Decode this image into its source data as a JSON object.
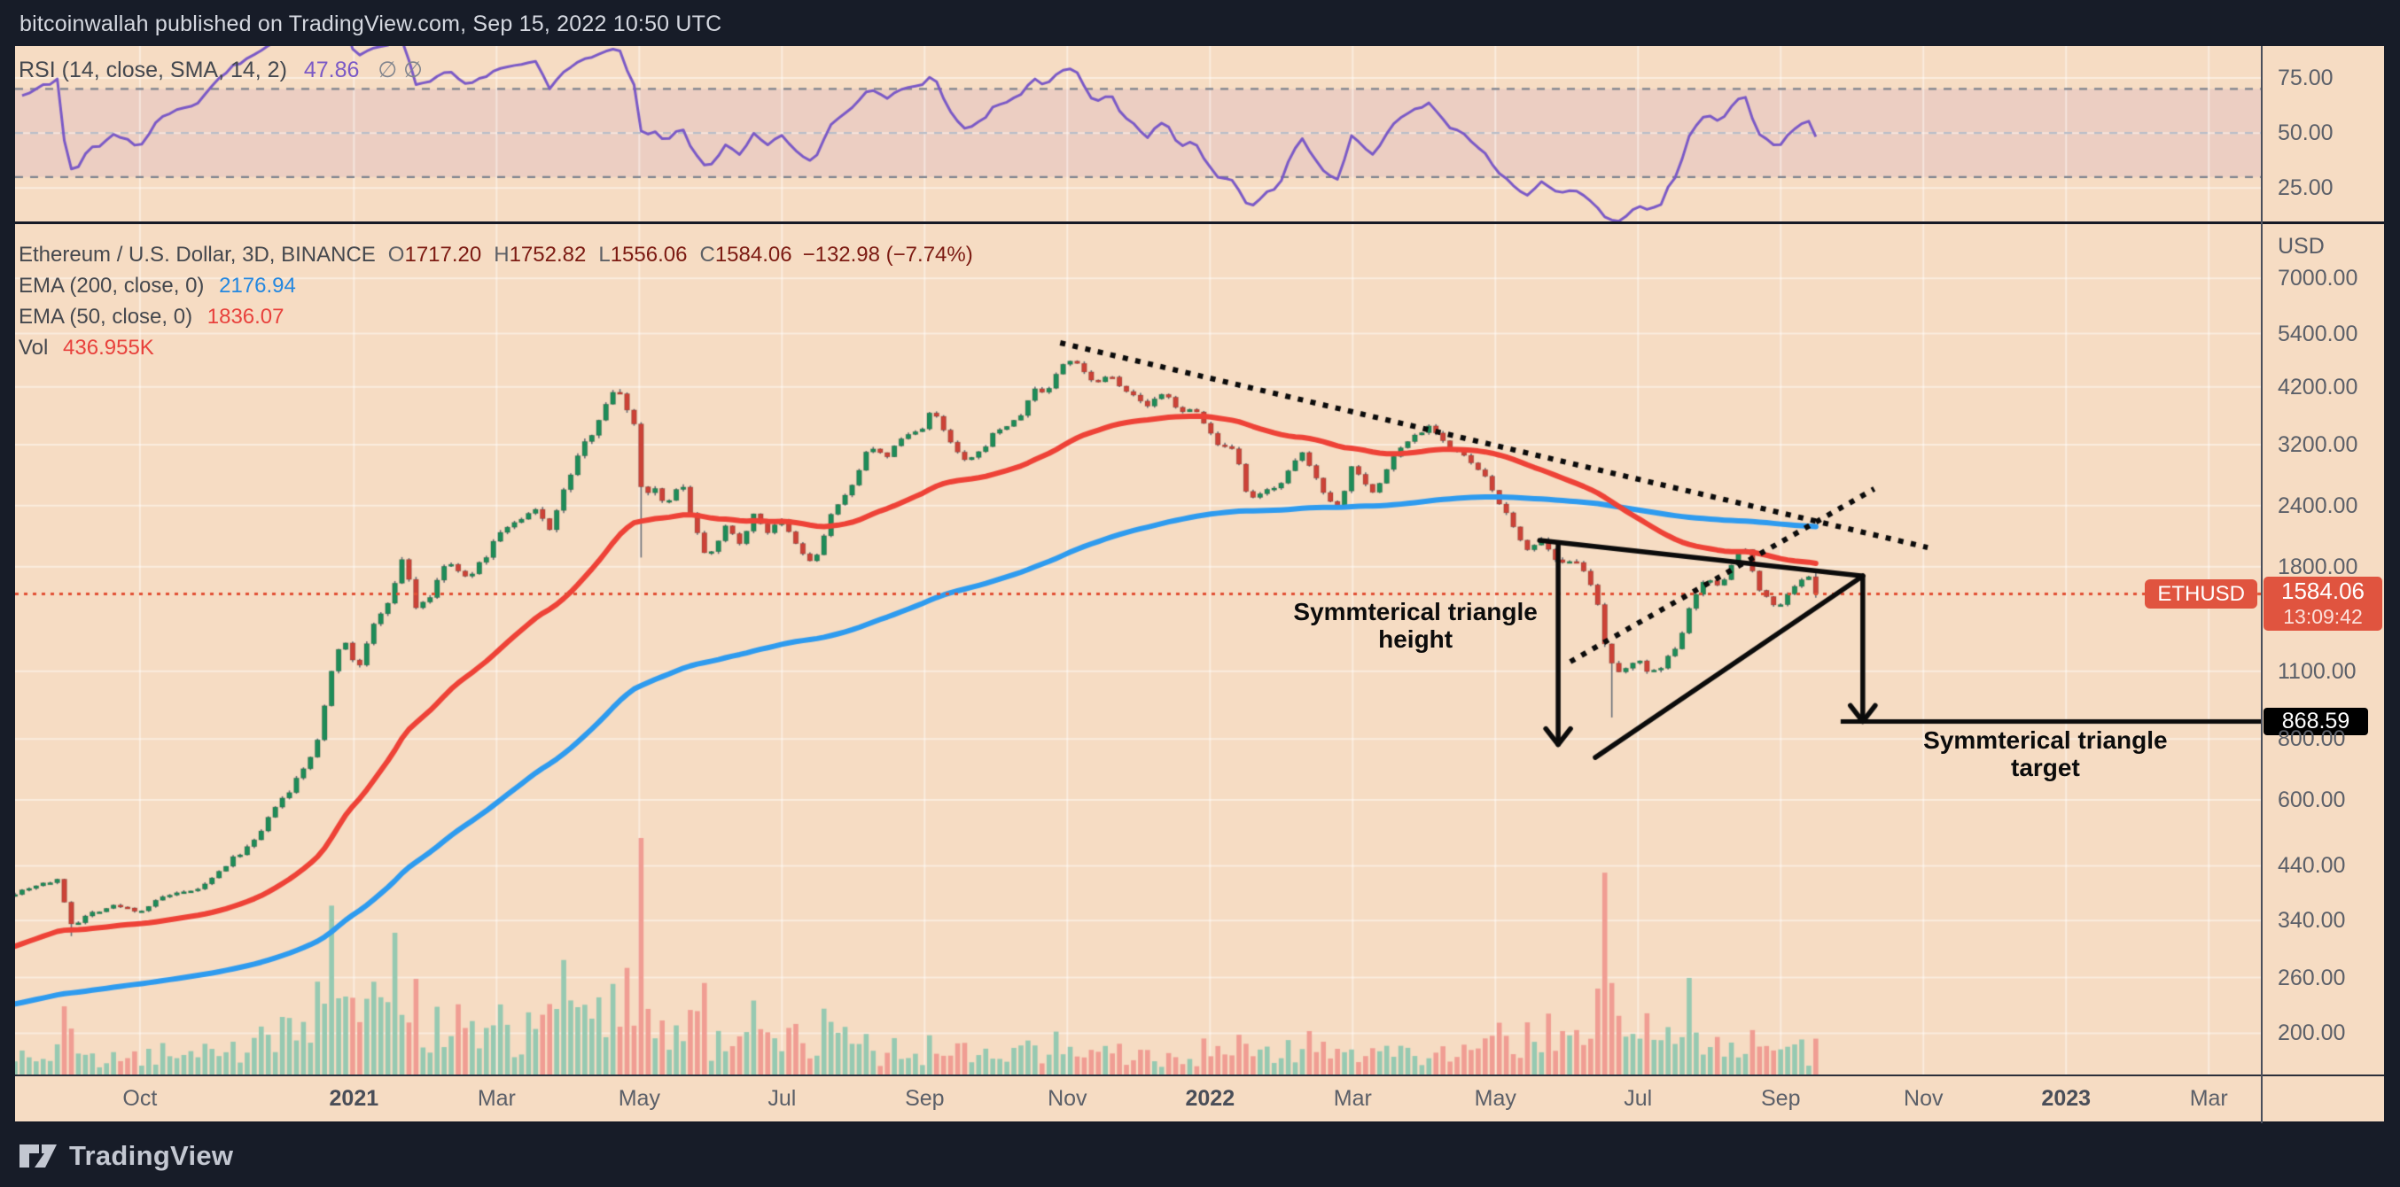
{
  "header": {
    "title": "bitcoinwallah published on TradingView.com, Sep 15, 2022 10:50 UTC"
  },
  "footer": {
    "brand": "TradingView"
  },
  "rsi_pane": {
    "legend_label": "RSI (14, close, SMA, 14, 2)",
    "legend_value": "47.86",
    "hidden_values": "∅ ∅"
  },
  "main_pane": {
    "legend_symbol": "Ethereum / U.S. Dollar, 3D, BINANCE",
    "ohlc": [
      {
        "k": "O",
        "v": "1717.20"
      },
      {
        "k": "H",
        "v": "1752.82"
      },
      {
        "k": "L",
        "v": "1556.06"
      },
      {
        "k": "C",
        "v": "1584.06"
      }
    ],
    "change": "−132.98 (−7.74%)",
    "ema200_label": "EMA (200, close, 0)",
    "ema200_value": "2176.94",
    "ema50_label": "EMA (50, close, 0)",
    "ema50_value": "1836.07",
    "vol_label": "Vol",
    "vol_value": "436.955K",
    "axis_currency": "USD",
    "badges": {
      "symbol_tag": "ETHUSD",
      "last_price": "1584.06",
      "countdown": "13:09:42",
      "target": "868.59"
    }
  },
  "colors": {
    "page_bg": "#171c28",
    "panel_bg": "#f6dcc3",
    "candle_up": "#1e8c58",
    "candle_down": "#cc4237",
    "wick": "#6a6f78",
    "vol_up": "#96c9b1",
    "vol_down": "#f09d93",
    "ema_fast_red": "#ee4237",
    "ema_slow_blue": "#2e9bef",
    "rsi_line": "#7a59c6",
    "rsi_band_fill": "rgba(144,84,190,0.10)",
    "rsi_dash": "#7e838e",
    "rsi_mid_dash": "#b9bec9",
    "price_line_red": "#e04f33",
    "badge_red": "#e0543f",
    "badge_black": "#000000",
    "drawing_black": "#0b0b0b",
    "grid": "rgba(255,255,255,0.45)",
    "axis_text": "#5b5f68",
    "legend_text": "#45484e",
    "ohlc_text": "#7c1a12",
    "title_text": "#d5d8e0"
  },
  "chart_data": {
    "type": "candlestick",
    "symbol": "ETHUSD",
    "exchange": "BINANCE",
    "timeframe": "3D",
    "title": "Ethereum / U.S. Dollar, 3D, BINANCE",
    "x_axis": {
      "unit": "months since 2020-10-01",
      "range": [
        -1.75,
        29.73
      ],
      "grid": true,
      "ticks": [
        {
          "m": 0,
          "label": "Oct",
          "bold": false
        },
        {
          "m": 3,
          "label": "2021",
          "bold": true
        },
        {
          "m": 5,
          "label": "Mar",
          "bold": false
        },
        {
          "m": 7,
          "label": "May",
          "bold": false
        },
        {
          "m": 9,
          "label": "Jul",
          "bold": false
        },
        {
          "m": 11,
          "label": "Sep",
          "bold": false
        },
        {
          "m": 13,
          "label": "Nov",
          "bold": false
        },
        {
          "m": 15,
          "label": "2022",
          "bold": true
        },
        {
          "m": 17,
          "label": "Mar",
          "bold": false
        },
        {
          "m": 19,
          "label": "May",
          "bold": false
        },
        {
          "m": 21,
          "label": "Jul",
          "bold": false
        },
        {
          "m": 23,
          "label": "Sep",
          "bold": false
        },
        {
          "m": 25,
          "label": "Nov",
          "bold": false
        },
        {
          "m": 27,
          "label": "2023",
          "bold": true
        },
        {
          "m": 29,
          "label": "Mar",
          "bold": false
        }
      ]
    },
    "y_axis": {
      "label": "USD",
      "scale": "log",
      "range": [
        164,
        9078
      ],
      "ticks": [
        7000,
        5400,
        4200,
        3200,
        2400,
        1800,
        1100,
        800,
        600,
        440,
        340,
        260,
        200
      ]
    },
    "rsi_axis": {
      "range": [
        9,
        89.5
      ],
      "ticks": [
        75,
        50,
        25
      ],
      "bands": [
        70,
        30
      ],
      "mid": 50,
      "period": 14,
      "value": 47.86
    },
    "current_price": 1584.06,
    "target_price": 868.59,
    "last_candle": {
      "o": 1717.2,
      "h": 1752.82,
      "l": 1556.06,
      "c": 1584.06
    },
    "ema50": {
      "period": 50,
      "seed": 298,
      "value": 1836.07
    },
    "ema200": {
      "period": 200,
      "seed": 228,
      "value": 2176.94
    },
    "volume_last_k": 436.955,
    "candle_step_months": 0.0986,
    "seed": 7,
    "price_keyframes": [
      [
        -1.75,
        388
      ],
      [
        -1.4,
        405
      ],
      [
        -1.15,
        410
      ],
      [
        -0.95,
        332
      ],
      [
        -0.7,
        352
      ],
      [
        -0.35,
        365
      ],
      [
        0,
        355
      ],
      [
        0.35,
        382
      ],
      [
        0.7,
        388
      ],
      [
        0.95,
        405
      ],
      [
        1.3,
        455
      ],
      [
        1.6,
        492
      ],
      [
        1.75,
        530
      ],
      [
        1.9,
        585
      ],
      [
        2.1,
        620
      ],
      [
        2.25,
        688
      ],
      [
        2.45,
        745
      ],
      [
        2.6,
        960
      ],
      [
        2.75,
        1235
      ],
      [
        2.9,
        1240
      ],
      [
        3.05,
        1105
      ],
      [
        3.3,
        1390
      ],
      [
        3.55,
        1600
      ],
      [
        3.7,
        1935
      ],
      [
        3.85,
        1480
      ],
      [
        4.1,
        1580
      ],
      [
        4.3,
        1860
      ],
      [
        4.55,
        1700
      ],
      [
        4.8,
        1840
      ],
      [
        5.05,
        2130
      ],
      [
        5.3,
        2220
      ],
      [
        5.55,
        2345
      ],
      [
        5.75,
        2160
      ],
      [
        6.1,
        2950
      ],
      [
        6.35,
        3430
      ],
      [
        6.55,
        3950
      ],
      [
        6.7,
        4140
      ],
      [
        6.8,
        3920
      ],
      [
        6.95,
        3430
      ],
      [
        7.05,
        2450
      ],
      [
        7.2,
        2650
      ],
      [
        7.4,
        2400
      ],
      [
        7.6,
        2710
      ],
      [
        7.75,
        2230
      ],
      [
        7.95,
        1880
      ],
      [
        8.2,
        2165
      ],
      [
        8.45,
        2000
      ],
      [
        8.6,
        2320
      ],
      [
        8.8,
        2120
      ],
      [
        9.0,
        2230
      ],
      [
        9.25,
        1940
      ],
      [
        9.45,
        1820
      ],
      [
        9.7,
        2330
      ],
      [
        9.95,
        2560
      ],
      [
        10.2,
        3160
      ],
      [
        10.45,
        3010
      ],
      [
        10.7,
        3325
      ],
      [
        10.95,
        3430
      ],
      [
        11.1,
        3790
      ],
      [
        11.3,
        3330
      ],
      [
        11.55,
        2950
      ],
      [
        11.75,
        3050
      ],
      [
        12.0,
        3420
      ],
      [
        12.3,
        3580
      ],
      [
        12.55,
        4170
      ],
      [
        12.7,
        4070
      ],
      [
        12.9,
        4620
      ],
      [
        13.1,
        4810
      ],
      [
        13.35,
        4300
      ],
      [
        13.6,
        4450
      ],
      [
        13.85,
        4100
      ],
      [
        14.1,
        3830
      ],
      [
        14.35,
        4060
      ],
      [
        14.6,
        3760
      ],
      [
        14.85,
        3720
      ],
      [
        15.1,
        3180
      ],
      [
        15.35,
        3090
      ],
      [
        15.55,
        2440
      ],
      [
        15.75,
        2550
      ],
      [
        16.0,
        2690
      ],
      [
        16.3,
        3080
      ],
      [
        16.55,
        2620
      ],
      [
        16.8,
        2360
      ],
      [
        17.0,
        2930
      ],
      [
        17.3,
        2520
      ],
      [
        17.55,
        3000
      ],
      [
        17.8,
        3290
      ],
      [
        18.1,
        3520
      ],
      [
        18.35,
        3140
      ],
      [
        18.6,
        3000
      ],
      [
        18.85,
        2740
      ],
      [
        19.1,
        2380
      ],
      [
        19.3,
        2090
      ],
      [
        19.45,
        1965
      ],
      [
        19.65,
        2020
      ],
      [
        19.9,
        1790
      ],
      [
        20.1,
        1900
      ],
      [
        20.25,
        1770
      ],
      [
        20.45,
        1460
      ],
      [
        20.55,
        1210
      ],
      [
        20.7,
        1070
      ],
      [
        20.85,
        1125
      ],
      [
        21.0,
        1190
      ],
      [
        21.15,
        1068
      ],
      [
        21.35,
        1140
      ],
      [
        21.55,
        1230
      ],
      [
        21.75,
        1550
      ],
      [
        21.95,
        1700
      ],
      [
        22.15,
        1640
      ],
      [
        22.35,
        1880
      ],
      [
        22.5,
        1970
      ],
      [
        22.7,
        1620
      ],
      [
        22.95,
        1480
      ],
      [
        23.2,
        1650
      ],
      [
        23.35,
        1710
      ],
      [
        23.42,
        1717
      ],
      [
        23.5,
        1584.06
      ]
    ],
    "wick_events": [
      {
        "m": -0.95,
        "low": 316
      },
      {
        "m": 7.0,
        "low": 1880
      },
      {
        "m": 20.62,
        "low": 885
      }
    ],
    "volatility_envelope": [
      [
        -1.75,
        0.8
      ],
      [
        0,
        0.6
      ],
      [
        2,
        0.9
      ],
      [
        3,
        1.3
      ],
      [
        5,
        1.1
      ],
      [
        7,
        1.6
      ],
      [
        8,
        1.1
      ],
      [
        10,
        0.9
      ],
      [
        13,
        1.0
      ],
      [
        15,
        1.0
      ],
      [
        17,
        1.0
      ],
      [
        19,
        1.0
      ],
      [
        20.5,
        1.5
      ],
      [
        21,
        1.2
      ],
      [
        22,
        0.9
      ],
      [
        23.5,
        0.8
      ]
    ],
    "volume_envelope": [
      [
        -1.75,
        0.55
      ],
      [
        0,
        0.5
      ],
      [
        1.5,
        0.7
      ],
      [
        2.5,
        1.0
      ],
      [
        3.5,
        1.25
      ],
      [
        4.5,
        1.0
      ],
      [
        5.5,
        0.9
      ],
      [
        7,
        1.05
      ],
      [
        8,
        0.75
      ],
      [
        9,
        0.6
      ],
      [
        10,
        0.6
      ],
      [
        11,
        0.55
      ],
      [
        12,
        0.5
      ],
      [
        13,
        0.5
      ],
      [
        14,
        0.45
      ],
      [
        15,
        0.45
      ],
      [
        16,
        0.5
      ],
      [
        17,
        0.45
      ],
      [
        18,
        0.45
      ],
      [
        19,
        0.55
      ],
      [
        20,
        0.8
      ],
      [
        20.5,
        1.25
      ],
      [
        21,
        0.9
      ],
      [
        21.5,
        0.75
      ],
      [
        22,
        0.6
      ],
      [
        23,
        0.55
      ],
      [
        23.5,
        0.5
      ]
    ],
    "drawings": {
      "trend_dotted_desc": {
        "m": [
          12.9,
          25.06
        ],
        "p": [
          5168,
          1971
        ]
      },
      "trend_dotted_asc": {
        "m": [
          20.05,
          24.31
        ],
        "p": [
          1151,
          2597
        ]
      },
      "triangle_upper": {
        "m": [
          19.62,
          24.15
        ],
        "p": [
          2038,
          1724
        ]
      },
      "triangle_lower": {
        "m": [
          20.4,
          24.15
        ],
        "p": [
          733,
          1724
        ]
      },
      "height_arrow": {
        "m": 19.88,
        "p": [
          2014,
          779
        ]
      },
      "target_arrow": {
        "m": 24.15,
        "p": [
          1724,
          868.59
        ]
      },
      "target_line": {
        "m": [
          23.84,
          29.73
        ],
        "p": 868.59
      }
    },
    "annotations": [
      {
        "lines": [
          "Symmterical triangle",
          "height"
        ],
        "m": 17.88,
        "p": 1365
      },
      {
        "lines": [
          "Symmterical triangle",
          "target"
        ],
        "m": 26.71,
        "p": 745
      }
    ]
  }
}
